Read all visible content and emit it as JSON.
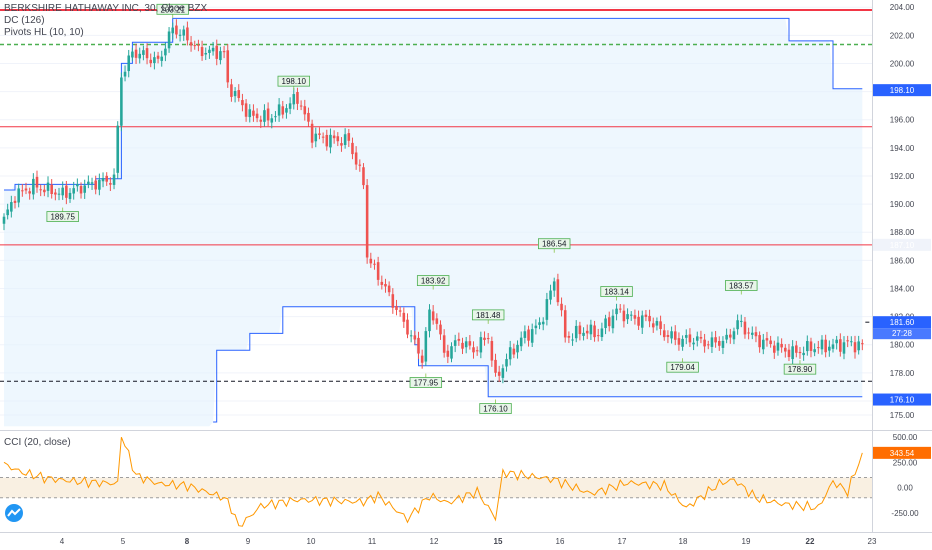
{
  "legend": {
    "symbol": "BERKSHIRE HATHAWAY INC, 30, Cboe BZX",
    "dc": "DC (126)",
    "pivots": "Pivots HL (10, 10)",
    "cci": "CCI (20, close)"
  },
  "colors": {
    "up": "#26a69a",
    "down": "#ef5350",
    "channel_line": "#2962ff",
    "channel_fill": "#e3f2fd",
    "red_line": "#f23645",
    "dashed_green": "#4caf50",
    "cci_line": "#ff9800",
    "cci_band": "#f5e6cf",
    "price_badge": "#2962ff",
    "cci_badge": "#ff6d00"
  },
  "chart_data": [
    {
      "type": "candlestick",
      "ylim": [
        174.5,
        204.3
      ],
      "y_ticks": [
        "204.00",
        "202.00",
        "200.00",
        "198.00",
        "196.00",
        "194.00",
        "192.00",
        "190.00",
        "188.00",
        "186.00",
        "184.00",
        "182.00",
        "180.00",
        "178.00",
        "176.00",
        "175.00"
      ],
      "x_labels": [
        "4",
        "5",
        "8",
        "9",
        "10",
        "11",
        "12",
        "15",
        "16",
        "17",
        "18",
        "19",
        "22",
        "23"
      ],
      "x_bold": [
        "8",
        "15",
        "22"
      ],
      "pivot_labels": [
        "203.21",
        "198.10",
        "189.75",
        "186.54",
        "183.92",
        "181.48",
        "183.14",
        "183.57",
        "179.04",
        "178.90",
        "177.95",
        "176.10"
      ],
      "pivot_points": [
        {
          "label": 0,
          "bar": 46,
          "value": 203.21,
          "pos": "high"
        },
        {
          "label": 1,
          "bar": 79,
          "value": 198.1,
          "pos": "high"
        },
        {
          "label": 2,
          "bar": 16,
          "value": 189.75,
          "pos": "low"
        },
        {
          "label": 3,
          "bar": 150,
          "value": 186.54,
          "pos": "high"
        },
        {
          "label": 4,
          "bar": 117,
          "value": 183.92,
          "pos": "high"
        },
        {
          "label": 5,
          "bar": 132,
          "value": 181.48,
          "pos": "high"
        },
        {
          "label": 6,
          "bar": 167,
          "value": 183.14,
          "pos": "high"
        },
        {
          "label": 7,
          "bar": 201,
          "value": 183.57,
          "pos": "high"
        },
        {
          "label": 8,
          "bar": 185,
          "value": 179.04,
          "pos": "low"
        },
        {
          "label": 9,
          "bar": 217,
          "value": 178.9,
          "pos": "low"
        },
        {
          "label": 10,
          "bar": 115,
          "value": 177.95,
          "pos": "low"
        },
        {
          "label": 11,
          "bar": 134,
          "value": 176.1,
          "pos": "low"
        }
      ],
      "horizontal_lines": [
        {
          "value": 203.8,
          "style": "solid",
          "color": "red_line"
        },
        {
          "value": 201.35,
          "style": "dashed",
          "color": "dashed_green"
        },
        {
          "value": 195.5,
          "style": "solid",
          "color": "red_line"
        },
        {
          "value": 187.1,
          "style": "solid",
          "color": "red_line"
        },
        {
          "value": 177.4,
          "style": "dashed",
          "color": "#131722"
        }
      ],
      "price_badges": [
        {
          "value": 198.1,
          "label": "198.10"
        },
        {
          "value": 187.1,
          "label": "187.10",
          "light": true
        },
        {
          "value": 181.6,
          "label": "181.60"
        },
        {
          "value": 176.1,
          "label": "176.10"
        }
      ],
      "countdown": "27:28",
      "bars": 235,
      "anchors": [
        [
          0,
          188.9
        ],
        [
          3,
          190.6
        ],
        [
          8,
          191.3
        ],
        [
          16,
          190.7
        ],
        [
          22,
          191.3
        ],
        [
          30,
          191.8
        ],
        [
          32,
          199.0
        ],
        [
          35,
          200.8
        ],
        [
          38,
          200.6
        ],
        [
          42,
          200.1
        ],
        [
          46,
          202.5
        ],
        [
          50,
          201.8
        ],
        [
          53,
          200.9
        ],
        [
          57,
          200.8
        ],
        [
          60,
          200.8
        ],
        [
          61,
          198.5
        ],
        [
          67,
          196.3
        ],
        [
          72,
          196.1
        ],
        [
          76,
          196.7
        ],
        [
          80,
          197.6
        ],
        [
          84,
          194.9
        ],
        [
          88,
          194.6
        ],
        [
          94,
          194.5
        ],
        [
          98,
          191.5
        ],
        [
          99,
          186.2
        ],
        [
          102,
          184.9
        ],
        [
          106,
          183.0
        ],
        [
          110,
          181.1
        ],
        [
          114,
          179.0
        ],
        [
          116,
          182.5
        ],
        [
          118,
          181.6
        ],
        [
          120,
          179.3
        ],
        [
          124,
          180.3
        ],
        [
          128,
          179.6
        ],
        [
          132,
          180.6
        ],
        [
          134,
          177.5
        ],
        [
          137,
          179.0
        ],
        [
          141,
          180.4
        ],
        [
          146,
          181.4
        ],
        [
          150,
          184.5
        ],
        [
          151,
          183.5
        ],
        [
          153,
          180.5
        ],
        [
          158,
          181.0
        ],
        [
          162,
          180.8
        ],
        [
          167,
          182.4
        ],
        [
          172,
          181.8
        ],
        [
          176,
          181.8
        ],
        [
          180,
          180.8
        ],
        [
          184,
          180.3
        ],
        [
          188,
          180.4
        ],
        [
          192,
          180.1
        ],
        [
          197,
          180.3
        ],
        [
          200,
          181.6
        ],
        [
          205,
          180.4
        ],
        [
          210,
          179.9
        ],
        [
          215,
          179.4
        ],
        [
          220,
          179.8
        ],
        [
          225,
          179.9
        ],
        [
          230,
          180.1
        ],
        [
          234,
          179.9
        ]
      ],
      "jumps": [
        [
          32,
          199.0
        ],
        [
          60,
          200.8
        ],
        [
          99,
          186.2
        ],
        [
          116,
          182.5
        ],
        [
          150,
          184.5
        ]
      ],
      "donchian_upper": [
        [
          0,
          191.0
        ],
        [
          3,
          191.4
        ],
        [
          12,
          191.4
        ],
        [
          25,
          191.8
        ],
        [
          32,
          200.0
        ],
        [
          35,
          201.5
        ],
        [
          46,
          203.2
        ],
        [
          210,
          203.2
        ],
        [
          214,
          201.6
        ],
        [
          224,
          201.6
        ],
        [
          226,
          198.2
        ],
        [
          234,
          198.2
        ]
      ],
      "donchian_lower": [
        [
          57,
          174.5
        ],
        [
          58,
          179.6
        ],
        [
          66,
          179.6
        ],
        [
          67,
          180.8
        ],
        [
          75,
          180.8
        ],
        [
          76,
          182.7
        ],
        [
          101,
          182.7
        ],
        [
          112,
          180.0
        ],
        [
          113,
          178.5
        ],
        [
          130,
          178.5
        ],
        [
          132,
          176.3
        ],
        [
          234,
          176.3
        ]
      ]
    },
    {
      "type": "line",
      "title": "CCI (20, close)",
      "ylim": [
        -380,
        520
      ],
      "y_ticks": [
        "500.00",
        "250.00",
        "0.00",
        "-250.00"
      ],
      "band": [
        -100,
        100
      ],
      "last_value": "343.54",
      "anchors": [
        [
          0,
          230
        ],
        [
          5,
          150
        ],
        [
          12,
          90
        ],
        [
          20,
          60
        ],
        [
          31,
          40
        ],
        [
          32,
          520
        ],
        [
          36,
          120
        ],
        [
          42,
          40
        ],
        [
          50,
          20
        ],
        [
          60,
          -100
        ],
        [
          62,
          -200
        ],
        [
          64,
          -390
        ],
        [
          70,
          -180
        ],
        [
          80,
          -120
        ],
        [
          98,
          -140
        ],
        [
          102,
          -80
        ],
        [
          110,
          -310
        ],
        [
          116,
          -80
        ],
        [
          121,
          -150
        ],
        [
          129,
          -40
        ],
        [
          134,
          -300
        ],
        [
          136,
          150
        ],
        [
          150,
          80
        ],
        [
          160,
          -60
        ],
        [
          170,
          50
        ],
        [
          180,
          20
        ],
        [
          186,
          -200
        ],
        [
          195,
          40
        ],
        [
          199,
          80
        ],
        [
          205,
          -100
        ],
        [
          212,
          -160
        ],
        [
          222,
          -200
        ],
        [
          226,
          60
        ],
        [
          230,
          -40
        ],
        [
          234,
          343.54
        ]
      ]
    }
  ]
}
